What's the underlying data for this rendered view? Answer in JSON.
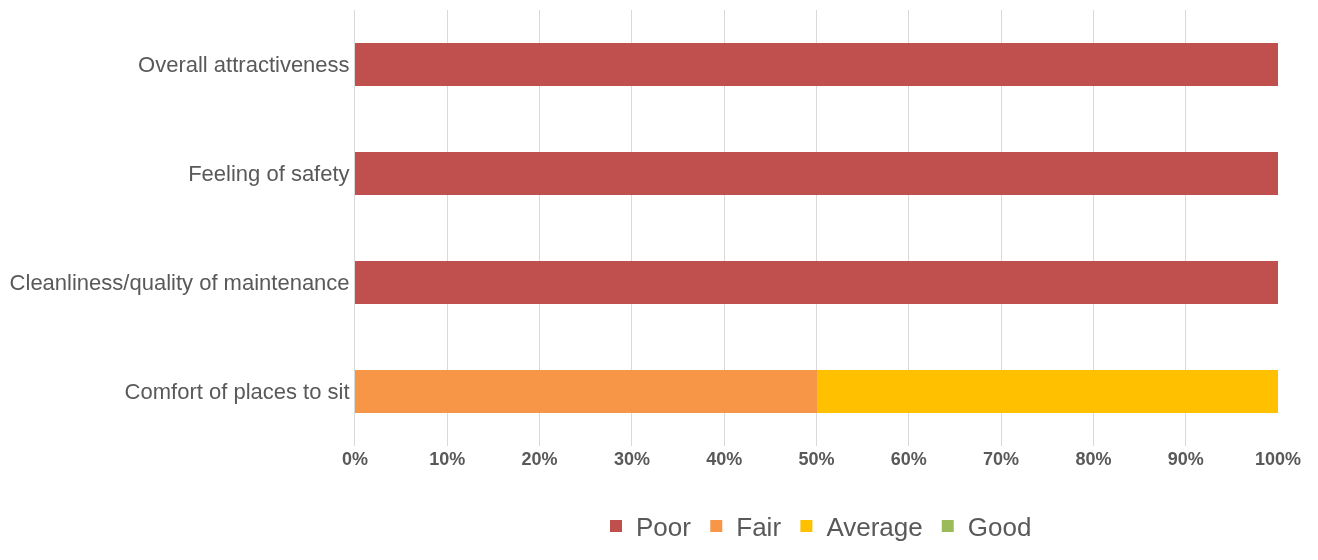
{
  "chart_data": {
    "type": "bar",
    "orientation": "horizontal",
    "stacked": true,
    "categories": [
      "Overall attractiveness",
      "Feeling of safety",
      "Cleanliness/quality of maintenance",
      "Comfort of places to sit"
    ],
    "series": [
      {
        "name": "Poor",
        "color": "#c0504d",
        "values": [
          100,
          100,
          100,
          0
        ]
      },
      {
        "name": "Fair",
        "color": "#f79646",
        "values": [
          0,
          0,
          0,
          50
        ]
      },
      {
        "name": "Average",
        "color": "#ffc000",
        "values": [
          0,
          0,
          0,
          50
        ]
      },
      {
        "name": "Good",
        "color": "#9bbb59",
        "values": [
          0,
          0,
          0,
          0
        ]
      }
    ],
    "xlim": [
      0,
      100
    ],
    "xticks": [
      {
        "value": 0,
        "label": "0%"
      },
      {
        "value": 10,
        "label": "10%"
      },
      {
        "value": 20,
        "label": "20%"
      },
      {
        "value": 30,
        "label": "30%"
      },
      {
        "value": 40,
        "label": "40%"
      },
      {
        "value": 50,
        "label": "50%"
      },
      {
        "value": 60,
        "label": "60%"
      },
      {
        "value": 70,
        "label": "70%"
      },
      {
        "value": 80,
        "label": "80%"
      },
      {
        "value": 90,
        "label": "90%"
      },
      {
        "value": 100,
        "label": "100%"
      }
    ],
    "grid": "x",
    "legend": "bottom"
  }
}
